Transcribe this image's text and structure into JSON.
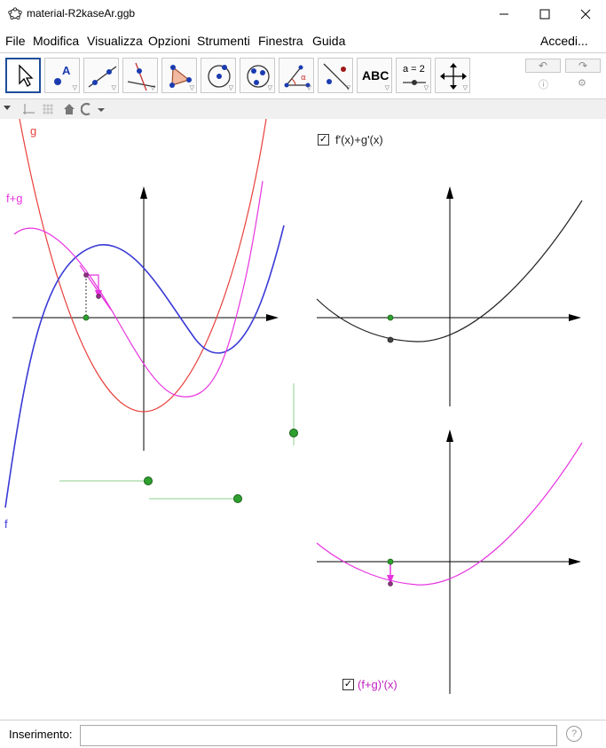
{
  "window": {
    "title": "material-R2kaseAr.ggb",
    "minimize_icon": "minimize-icon",
    "maximize_icon": "maximize-icon",
    "close_icon": "close-icon"
  },
  "menu": {
    "items": [
      "File",
      "Modifica",
      "Visualizza",
      "Opzioni",
      "Strumenti",
      "Finestra",
      "Guida"
    ],
    "login": "Accedi..."
  },
  "toolbar": {
    "tools": [
      "move-tool",
      "point-tool",
      "line-tool",
      "perpendicular-tool",
      "polygon-tool",
      "circle-tool",
      "conic-tool",
      "angle-tool",
      "reflect-tool",
      "text-tool",
      "slider-tool",
      "move-view-tool"
    ],
    "text_tool_label": "ABC",
    "slider_tool_label": "a = 2",
    "undo_icon": "undo-icon",
    "redo_icon": "redo-icon"
  },
  "graphics": {
    "labels": {
      "g": "g",
      "fg": "f+g",
      "f": "f"
    },
    "checkbox_top": {
      "label": "f'(x)+g'(x)",
      "checked": true
    },
    "checkbox_bottom": {
      "label": "(f+g)'(x)",
      "checked": true
    },
    "colors": {
      "g": "#e8403c",
      "f": "#3a3ad6",
      "fg": "#e834e0",
      "derivative_sum": "#222222",
      "slider": "#2e8b2e"
    }
  },
  "input": {
    "label": "Inserimento:",
    "value": "",
    "help": "?"
  }
}
